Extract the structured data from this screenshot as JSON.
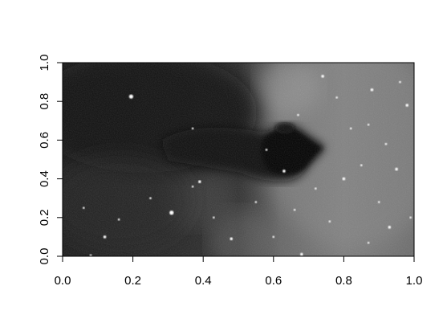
{
  "chart_data": {
    "type": "heatmap",
    "title": "",
    "xlabel": "",
    "ylabel": "",
    "xlim": [
      0,
      1
    ],
    "ylim": [
      0,
      1
    ],
    "x_ticks": [
      "0.0",
      "0.2",
      "0.4",
      "0.6",
      "0.8",
      "1.0"
    ],
    "y_ticks": [
      "0.0",
      "0.2",
      "0.4",
      "0.6",
      "0.8",
      "1.0"
    ],
    "x_tick_values": [
      0,
      0.2,
      0.4,
      0.6,
      0.8,
      1.0
    ],
    "y_tick_values": [
      0,
      0.2,
      0.4,
      0.6,
      0.8,
      1.0
    ],
    "colormap": "grayscale",
    "grid": false,
    "legend": "none",
    "image_content": "Horsehead nebula, grayscale astronomical image",
    "bright_stars": [
      {
        "x": 0.195,
        "y": 0.825
      },
      {
        "x": 0.31,
        "y": 0.225
      },
      {
        "x": 0.37,
        "y": 0.36
      },
      {
        "x": 0.39,
        "y": 0.385
      },
      {
        "x": 0.37,
        "y": 0.66
      },
      {
        "x": 0.67,
        "y": 0.73
      },
      {
        "x": 0.74,
        "y": 0.93
      },
      {
        "x": 0.82,
        "y": 0.66
      },
      {
        "x": 0.87,
        "y": 0.68
      },
      {
        "x": 0.8,
        "y": 0.4
      },
      {
        "x": 0.85,
        "y": 0.47
      },
      {
        "x": 0.92,
        "y": 0.58
      },
      {
        "x": 0.95,
        "y": 0.45
      },
      {
        "x": 0.9,
        "y": 0.28
      },
      {
        "x": 0.87,
        "y": 0.07
      },
      {
        "x": 0.68,
        "y": 0.01
      },
      {
        "x": 0.6,
        "y": 0.1
      },
      {
        "x": 0.55,
        "y": 0.28
      },
      {
        "x": 0.48,
        "y": 0.09
      },
      {
        "x": 0.08,
        "y": 0.005
      },
      {
        "x": 0.16,
        "y": 0.19
      },
      {
        "x": 0.98,
        "y": 0.78
      },
      {
        "x": 0.96,
        "y": 0.9
      },
      {
        "x": 0.72,
        "y": 0.35
      },
      {
        "x": 0.63,
        "y": 0.44
      },
      {
        "x": 0.58,
        "y": 0.55
      },
      {
        "x": 0.78,
        "y": 0.82
      },
      {
        "x": 0.88,
        "y": 0.86
      },
      {
        "x": 0.25,
        "y": 0.3
      },
      {
        "x": 0.06,
        "y": 0.25
      },
      {
        "x": 0.12,
        "y": 0.1
      },
      {
        "x": 0.43,
        "y": 0.2
      },
      {
        "x": 0.99,
        "y": 0.2
      },
      {
        "x": 0.93,
        "y": 0.15
      },
      {
        "x": 0.76,
        "y": 0.18
      },
      {
        "x": 0.66,
        "y": 0.24
      }
    ]
  }
}
